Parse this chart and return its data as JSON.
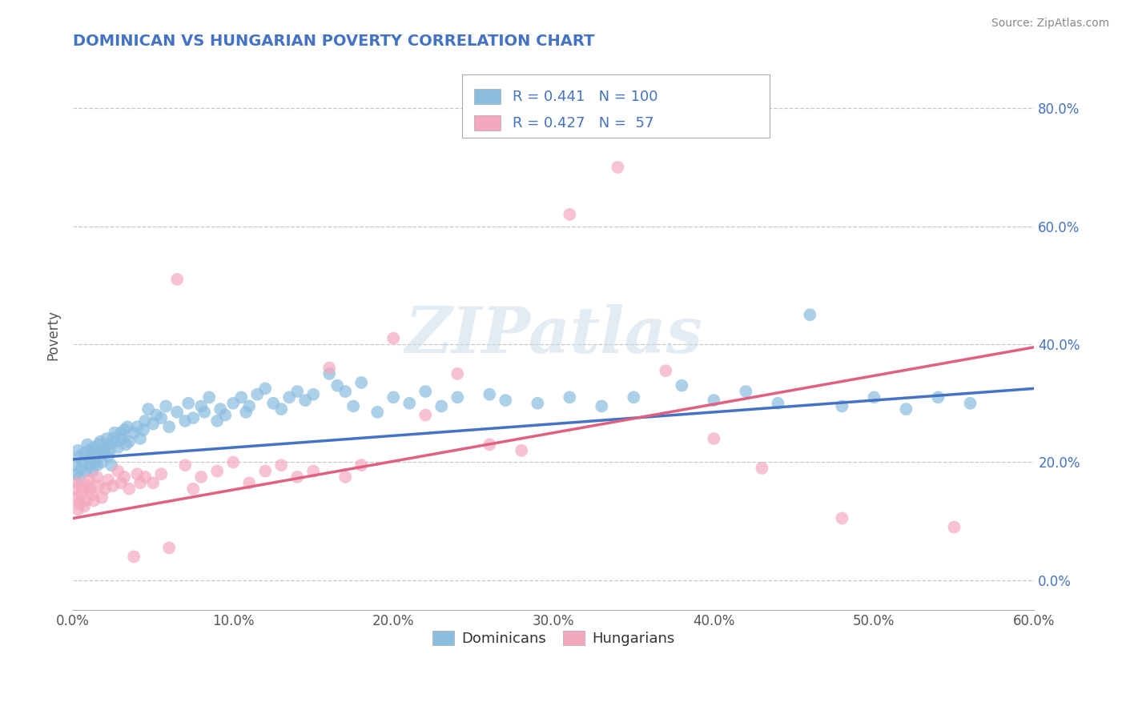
{
  "title": "DOMINICAN VS HUNGARIAN POVERTY CORRELATION CHART",
  "source": "Source: ZipAtlas.com",
  "xlabel_ticks": [
    "0.0%",
    "10.0%",
    "20.0%",
    "30.0%",
    "40.0%",
    "50.0%",
    "60.0%"
  ],
  "ylabel_ticks": [
    "0.0%",
    "20.0%",
    "40.0%",
    "60.0%",
    "80.0%"
  ],
  "xlim": [
    0.0,
    0.6
  ],
  "ylim": [
    -0.05,
    0.88
  ],
  "dominican_R": 0.441,
  "dominican_N": 100,
  "hungarian_R": 0.427,
  "hungarian_N": 57,
  "dominican_color": "#8bbde0",
  "hungarian_color": "#f4a8be",
  "dominican_line_color": "#4472c4",
  "hungarian_line_color": "#e06080",
  "background_color": "#ffffff",
  "grid_color": "#c8c8c8",
  "title_color": "#4472c4",
  "watermark_text": "ZIPatlas",
  "dom_line_y0": 0.205,
  "dom_line_y1": 0.325,
  "hun_line_y0": 0.105,
  "hun_line_y1": 0.395
}
